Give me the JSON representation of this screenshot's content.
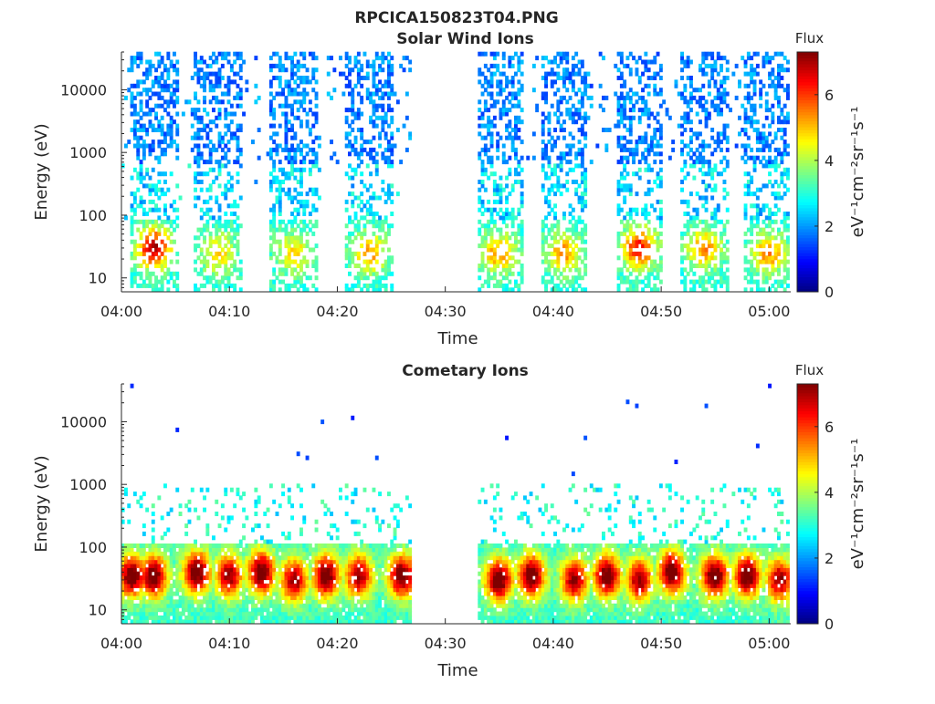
{
  "figure": {
    "title": "RPCICA150823T04.PNG"
  },
  "colorscale": [
    "#00007f",
    "#0000ff",
    "#0080ff",
    "#00ffff",
    "#80ff80",
    "#ffff00",
    "#ff8000",
    "#ff0000",
    "#7f0000"
  ],
  "chart_data": [
    {
      "type": "heatmap",
      "title": "Solar Wind Ions",
      "xlabel": "Time",
      "ylabel": "Energy (eV)",
      "x_range": [
        "04:00",
        "05:02"
      ],
      "y_scale": "log",
      "y_range": [
        6,
        40000
      ],
      "x_tick_labels": [
        "04:00",
        "04:10",
        "04:20",
        "04:30",
        "04:40",
        "04:50",
        "05:00"
      ],
      "y_tick_labels": [
        "10",
        "100",
        "1000",
        "10000"
      ],
      "data_gap": [
        "04:27",
        "04:33"
      ],
      "colorbar": {
        "title": "Flux",
        "label": "eV⁻¹cm⁻²sr⁻¹s⁻¹",
        "range": [
          0,
          7.3
        ],
        "ticks": [
          "0",
          "2",
          "4",
          "6"
        ]
      },
      "series": [
        {
          "time": "04:03",
          "low_energy_peak_ev": 30,
          "peak_flux": 6.5
        },
        {
          "time": "04:09",
          "low_energy_peak_ev": 25,
          "peak_flux": 4.5
        },
        {
          "time": "04:16",
          "low_energy_peak_ev": 25,
          "peak_flux": 4.5
        },
        {
          "time": "04:23",
          "low_energy_peak_ev": 25,
          "peak_flux": 5.0
        },
        {
          "time": "04:35",
          "low_energy_peak_ev": 25,
          "peak_flux": 5.0
        },
        {
          "time": "04:41",
          "low_energy_peak_ev": 25,
          "peak_flux": 5.0
        },
        {
          "time": "04:48",
          "low_energy_peak_ev": 30,
          "peak_flux": 6.0
        },
        {
          "time": "04:54",
          "low_energy_peak_ev": 30,
          "peak_flux": 5.0
        },
        {
          "time": "05:00",
          "low_energy_peak_ev": 25,
          "peak_flux": 5.0
        }
      ]
    },
    {
      "type": "heatmap",
      "title": "Cometary Ions",
      "xlabel": "Time",
      "ylabel": "Energy (eV)",
      "x_range": [
        "04:00",
        "05:02"
      ],
      "y_scale": "log",
      "y_range": [
        6,
        40000
      ],
      "x_tick_labels": [
        "04:00",
        "04:10",
        "04:20",
        "04:30",
        "04:40",
        "04:50",
        "05:00"
      ],
      "y_tick_labels": [
        "10",
        "100",
        "1000",
        "10000"
      ],
      "data_gap": [
        "04:27",
        "04:33"
      ],
      "colorbar": {
        "title": "Flux",
        "label": "eV⁻¹cm⁻²sr⁻¹s⁻¹",
        "range": [
          0,
          7.3
        ],
        "ticks": [
          "0",
          "2",
          "4",
          "6"
        ]
      },
      "series": [
        {
          "time": "04:01",
          "peak_energy_ev": 35,
          "peak_flux": 7.0
        },
        {
          "time": "04:03",
          "peak_energy_ev": 35,
          "peak_flux": 7.0
        },
        {
          "time": "04:07",
          "peak_energy_ev": 40,
          "peak_flux": 7.0
        },
        {
          "time": "04:10",
          "peak_energy_ev": 35,
          "peak_flux": 6.5
        },
        {
          "time": "04:13",
          "peak_energy_ev": 40,
          "peak_flux": 7.0
        },
        {
          "time": "04:16",
          "peak_energy_ev": 30,
          "peak_flux": 6.5
        },
        {
          "time": "04:19",
          "peak_energy_ev": 35,
          "peak_flux": 7.0
        },
        {
          "time": "04:22",
          "peak_energy_ev": 35,
          "peak_flux": 6.5
        },
        {
          "time": "04:26",
          "peak_energy_ev": 35,
          "peak_flux": 7.0
        },
        {
          "time": "04:35",
          "peak_energy_ev": 30,
          "peak_flux": 7.0
        },
        {
          "time": "04:38",
          "peak_energy_ev": 35,
          "peak_flux": 7.0
        },
        {
          "time": "04:42",
          "peak_energy_ev": 30,
          "peak_flux": 6.5
        },
        {
          "time": "04:45",
          "peak_energy_ev": 35,
          "peak_flux": 7.0
        },
        {
          "time": "04:48",
          "peak_energy_ev": 30,
          "peak_flux": 6.5
        },
        {
          "time": "04:51",
          "peak_energy_ev": 40,
          "peak_flux": 7.0
        },
        {
          "time": "04:55",
          "peak_energy_ev": 35,
          "peak_flux": 7.0
        },
        {
          "time": "04:58",
          "peak_energy_ev": 35,
          "peak_flux": 7.0
        },
        {
          "time": "05:01",
          "peak_energy_ev": 30,
          "peak_flux": 6.5
        }
      ]
    }
  ]
}
